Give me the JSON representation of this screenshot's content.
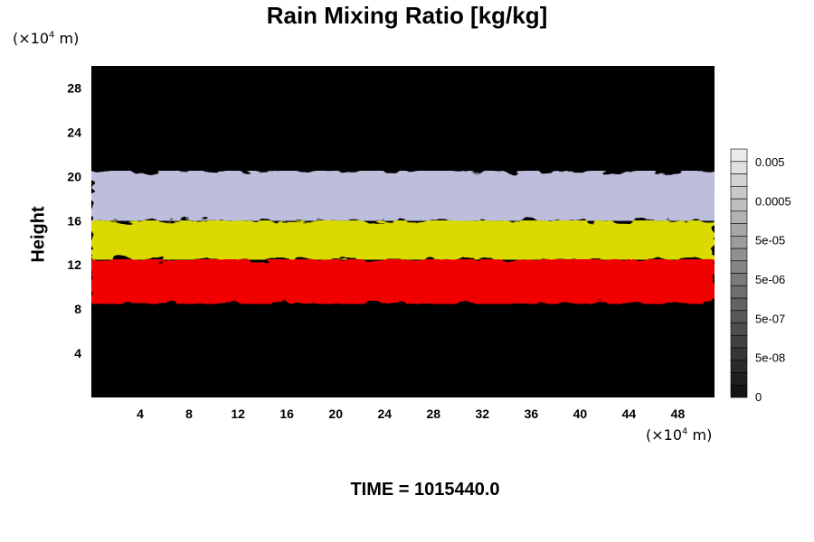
{
  "chart_data": {
    "type": "heatmap",
    "title": "Rain Mixing Ratio [kg/kg]",
    "ylabel": "Height",
    "xunit_prefix": "(×10",
    "xunit_exp": "4",
    "xunit_suffix": " m)",
    "yunit_prefix": "(×10",
    "yunit_exp": "4",
    "yunit_suffix": " m)",
    "xlim": [
      0,
      51
    ],
    "ylim": [
      0,
      30
    ],
    "xticks": [
      "4",
      "8",
      "12",
      "16",
      "20",
      "24",
      "28",
      "32",
      "36",
      "40",
      "44",
      "48"
    ],
    "yticks": [
      "4",
      "8",
      "12",
      "16",
      "20",
      "24",
      "28"
    ],
    "colorbar": {
      "labels": [
        "0.005",
        "0.0005",
        "5e-05",
        "5e-06",
        "5e-07",
        "5e-08",
        "0"
      ],
      "levels": 20
    },
    "layers": [
      {
        "name": "red",
        "color": "#ff0000",
        "bottom": 8.5,
        "top": 12.5
      },
      {
        "name": "yellow",
        "color": "#e6e600",
        "bottom": 12.5,
        "top": 16
      },
      {
        "name": "lavender",
        "color": "#c8c8e8",
        "bottom": 16,
        "top": 20.5
      }
    ],
    "footer": "TIME = 1015440.0"
  }
}
